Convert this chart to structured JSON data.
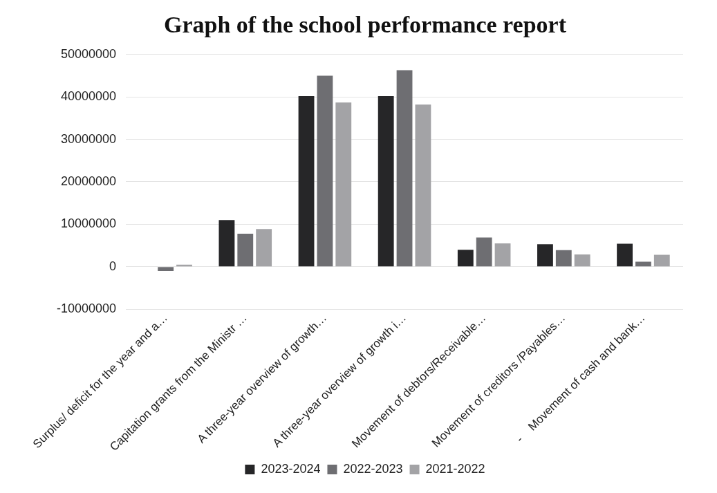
{
  "chart_data": {
    "type": "bar",
    "title": "Graph of the school performance report",
    "categories": [
      "Surplus/ deficit for the year and a…",
      "Capitation grants from the Ministr …",
      "A three-year overview of growth…",
      "A three-year overview of growth i…",
      "Movement of debtors/Receivable…",
      "Movement of creditors /Payables…",
      "-    Movement of cash and bank…"
    ],
    "series": [
      {
        "name": "2023-2024",
        "color": "#262628",
        "values": [
          0,
          11000000,
          40200000,
          40200000,
          4000000,
          5300000,
          5400000
        ]
      },
      {
        "name": "2022-2023",
        "color": "#6e6e72",
        "values": [
          -1000000,
          7800000,
          45000000,
          46300000,
          6900000,
          3900000,
          1200000
        ]
      },
      {
        "name": "2021-2022",
        "color": "#a3a3a6",
        "values": [
          500000,
          8900000,
          38700000,
          38200000,
          5500000,
          2900000,
          2800000
        ]
      }
    ],
    "ylim": [
      -10000000,
      50000000
    ],
    "yticks": [
      -10000000,
      0,
      10000000,
      20000000,
      30000000,
      40000000,
      50000000
    ],
    "grid": "y",
    "legend": "bottom"
  }
}
